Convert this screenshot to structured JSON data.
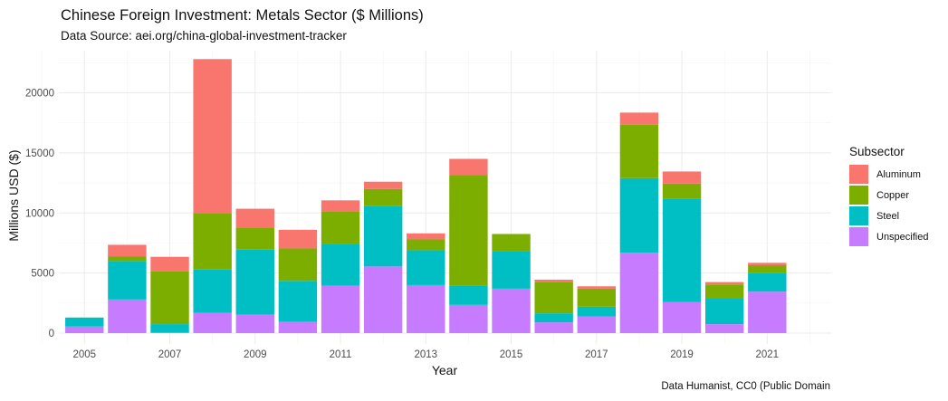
{
  "chart_data": {
    "type": "bar",
    "stacked": true,
    "title": "Chinese Foreign Investment: Metals Sector ($ Millions)",
    "subtitle": "Data Source: aei.org/china-global-investment-tracker",
    "caption": "Data Humanist, CC0 (Public Domain",
    "xlabel": "Year",
    "ylabel": "Millions USD ($)",
    "ylim": [
      -900,
      23500
    ],
    "xlim": [
      2004.4,
      2022.5
    ],
    "grid": true,
    "legend_position": "right",
    "legend_title": "Subsector",
    "x_ticks": [
      2005,
      2007,
      2009,
      2011,
      2013,
      2015,
      2017,
      2019,
      2021
    ],
    "y_ticks": [
      0,
      5000,
      10000,
      15000,
      20000
    ],
    "categories": [
      2005,
      2006,
      2007,
      2008,
      2009,
      2010,
      2011,
      2012,
      2013,
      2014,
      2015,
      2016,
      2017,
      2018,
      2019,
      2020,
      2021
    ],
    "series": [
      {
        "name": "Unspecified",
        "color": "#C77CFF",
        "values": [
          550,
          2800,
          50,
          1700,
          1550,
          950,
          3950,
          5550,
          4000,
          2350,
          3700,
          900,
          1400,
          6700,
          2600,
          750,
          3450
        ]
      },
      {
        "name": "Steel",
        "color": "#00BFC4",
        "values": [
          750,
          3200,
          700,
          3600,
          5400,
          3400,
          3500,
          5050,
          2900,
          1600,
          3150,
          750,
          800,
          6200,
          8600,
          2150,
          1550
        ]
      },
      {
        "name": "Copper",
        "color": "#7CAE00",
        "values": [
          0,
          400,
          4400,
          4700,
          1850,
          2700,
          2700,
          1400,
          900,
          9200,
          1400,
          2600,
          1500,
          4450,
          1250,
          1150,
          650
        ]
      },
      {
        "name": "Aluminum",
        "color": "#F8766D",
        "values": [
          0,
          950,
          1200,
          12800,
          1550,
          1550,
          900,
          600,
          500,
          1350,
          0,
          200,
          200,
          1000,
          1000,
          200,
          200
        ]
      }
    ],
    "legend_order": [
      "Aluminum",
      "Copper",
      "Steel",
      "Unspecified"
    ]
  }
}
